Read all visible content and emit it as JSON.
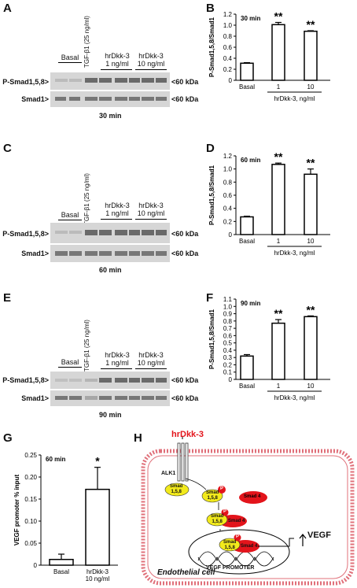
{
  "panels": {
    "A": {
      "letter": "A",
      "time": "30 min",
      "basal": "Basal",
      "tgf": "TGF-β1 (25 ng/ml)",
      "dkk1": "hrDkk-3\n1 ng/ml",
      "dkk10": "hrDkk-3\n10 ng/ml",
      "psmad": "P-Smad1,5,8>",
      "smad": "Smad1>",
      "kda1": "<60 kDa",
      "kda2": "<60 kDa"
    },
    "C": {
      "letter": "C",
      "time": "60 min",
      "basal": "Basal",
      "tgf": "TGF-β1 (25 ng/ml)",
      "dkk1": "hrDkk-3\n1 ng/ml",
      "dkk10": "hrDkk-3\n10 ng/ml",
      "psmad": "P-Smad1,5,8>",
      "smad": "Smad1>",
      "kda1": "<60 kDa",
      "kda2": "<60 kDa"
    },
    "E": {
      "letter": "E",
      "time": "90 min",
      "basal": "Basal",
      "tgf": "TGF-β1 (25 ng/ml)",
      "dkk1": "hrDkk-3\n1 ng/ml",
      "dkk10": "hrDkk-3\n10 ng/ml",
      "psmad": "P-Smad1,5,8>",
      "smad": "Smad1>",
      "kda1": "<60 kDa",
      "kda2": "<60 kDa"
    },
    "H": {
      "letter": "H",
      "ligand": "hrDkk-3",
      "receptor": "ALK1",
      "smad158": "Smad\n1,5,8",
      "smad4": "Smad 4",
      "phospho": "P",
      "vegf": "VEGF",
      "promoter": "VEGF PROMOTER",
      "cell": "Endothelial cell"
    }
  },
  "chart_data": [
    {
      "panel": "B",
      "type": "bar",
      "annotation": "30 min",
      "categories": [
        "Basal",
        "1",
        "10"
      ],
      "values": [
        0.31,
        1.01,
        0.89
      ],
      "errors": [
        0.01,
        0.04,
        0.01
      ],
      "significance": [
        "",
        "**",
        "**"
      ],
      "ylabel": "P-Smad1,5,8/Smad1",
      "xlabel": "hrDkk-3, ng/ml",
      "ylim": [
        0,
        1.2
      ],
      "yticks": [
        "0",
        "0.2",
        "0.4",
        "0.6",
        "0.8",
        "1.0",
        "1.2"
      ]
    },
    {
      "panel": "D",
      "type": "bar",
      "annotation": "60 min",
      "categories": [
        "Basal",
        "1",
        "10"
      ],
      "values": [
        0.27,
        1.07,
        0.92
      ],
      "errors": [
        0.01,
        0.02,
        0.08
      ],
      "significance": [
        "",
        "**",
        "**"
      ],
      "ylabel": "P-Smad1,5,8/Smad1",
      "xlabel": "hrDkk-3, ng/ml",
      "ylim": [
        0,
        1.2
      ],
      "yticks": [
        "0",
        "0.2",
        "0.4",
        "0.6",
        "0.8",
        "1.0",
        "1.2"
      ]
    },
    {
      "panel": "F",
      "type": "bar",
      "annotation": "90 min",
      "categories": [
        "Basal",
        "1",
        "10"
      ],
      "values": [
        0.32,
        0.77,
        0.86
      ],
      "errors": [
        0.02,
        0.05,
        0.01
      ],
      "significance": [
        "",
        "**",
        "**"
      ],
      "ylabel": "P-Smad1,5,8/Smad1",
      "xlabel": "hrDkk-3, ng/ml",
      "ylim": [
        0,
        1.1
      ],
      "yticks": [
        "0",
        "0.1",
        "0.2",
        "0.3",
        "0.4",
        "0.5",
        "0.6",
        "0.7",
        "0.8",
        "0.9",
        "1.0",
        "1.1"
      ]
    },
    {
      "panel": "G",
      "type": "bar",
      "annotation": "60 min",
      "categories": [
        "Basal",
        "hrDkk-3\n10 ng/ml"
      ],
      "values": [
        0.013,
        0.172
      ],
      "errors": [
        0.012,
        0.05
      ],
      "significance": [
        "",
        "*"
      ],
      "ylabel": "VEGF promoter % input",
      "xlabel": "",
      "ylim": [
        0,
        0.25
      ],
      "yticks": [
        "0",
        "0.05",
        "0.10",
        "0.15",
        "0.20",
        "0.25"
      ]
    }
  ],
  "chart_letters": {
    "B": "B",
    "D": "D",
    "F": "F",
    "G": "G"
  },
  "colors": {
    "smad158": "#f2ea1c",
    "smad4": "#e3141b",
    "ligand": "#e3141b",
    "membrane": "#e0707a"
  }
}
